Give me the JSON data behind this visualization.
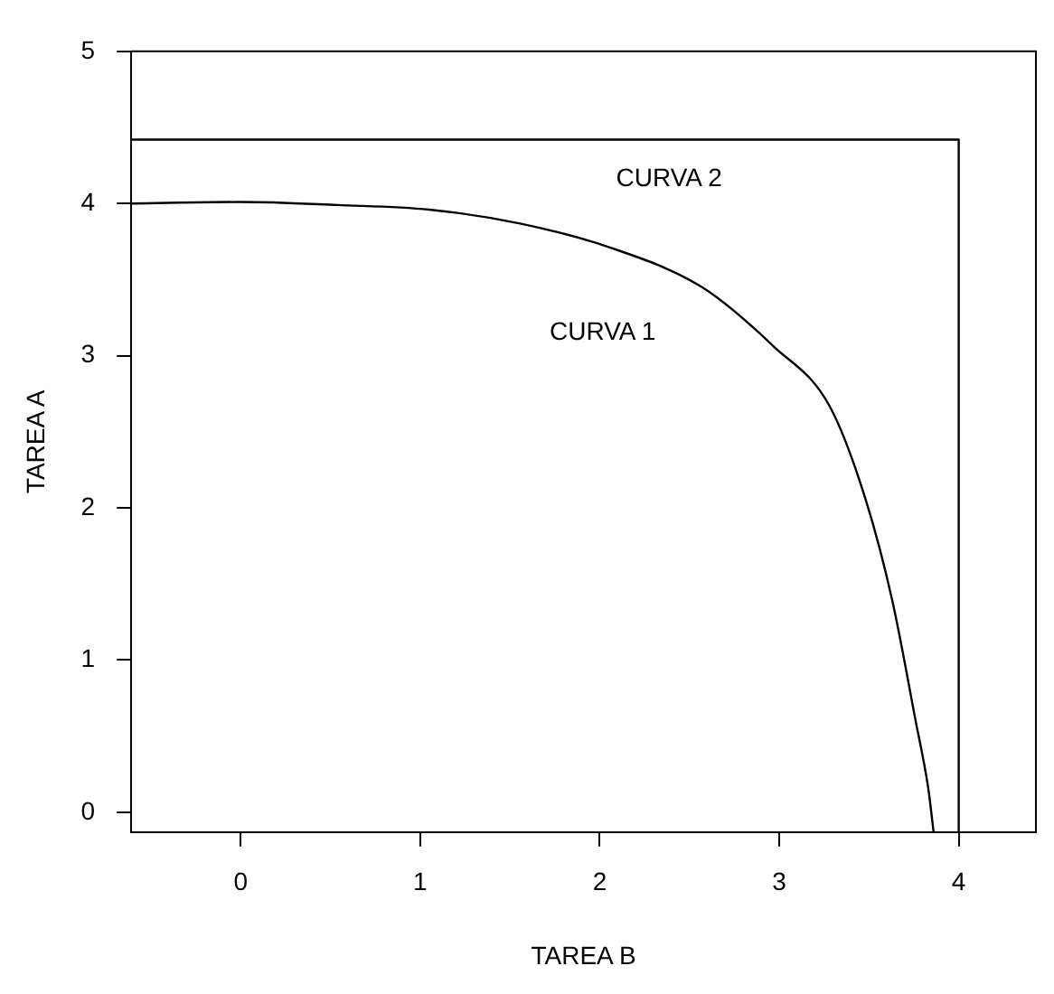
{
  "chart_data": {
    "type": "line",
    "xlabel": "TAREA B",
    "ylabel": "TAREA A",
    "xlim": [
      -0.61,
      4.43
    ],
    "ylim": [
      -0.13,
      5
    ],
    "xticks": [
      0,
      1,
      2,
      3,
      4
    ],
    "yticks": [
      0,
      1,
      2,
      3,
      4,
      5
    ],
    "series": [
      {
        "name": "CURVA 1",
        "color": "#000000",
        "x": [
          -0.61,
          0,
          0.54,
          1.05,
          1.55,
          2.06,
          2.57,
          2.97,
          3.28,
          3.48,
          3.63,
          3.76,
          3.83,
          3.86
        ],
        "values": [
          4.0,
          4.01,
          3.99,
          3.96,
          3.87,
          3.71,
          3.45,
          3.06,
          2.67,
          2.06,
          1.39,
          0.6,
          0.16,
          -0.13
        ]
      },
      {
        "name": "CURVA 2",
        "color": "#000000",
        "x": [
          -0.61,
          4.0,
          4.0
        ],
        "values": [
          4.42,
          4.42,
          -0.13
        ]
      }
    ],
    "marker": "none",
    "line_style": "solid",
    "legend": false
  }
}
